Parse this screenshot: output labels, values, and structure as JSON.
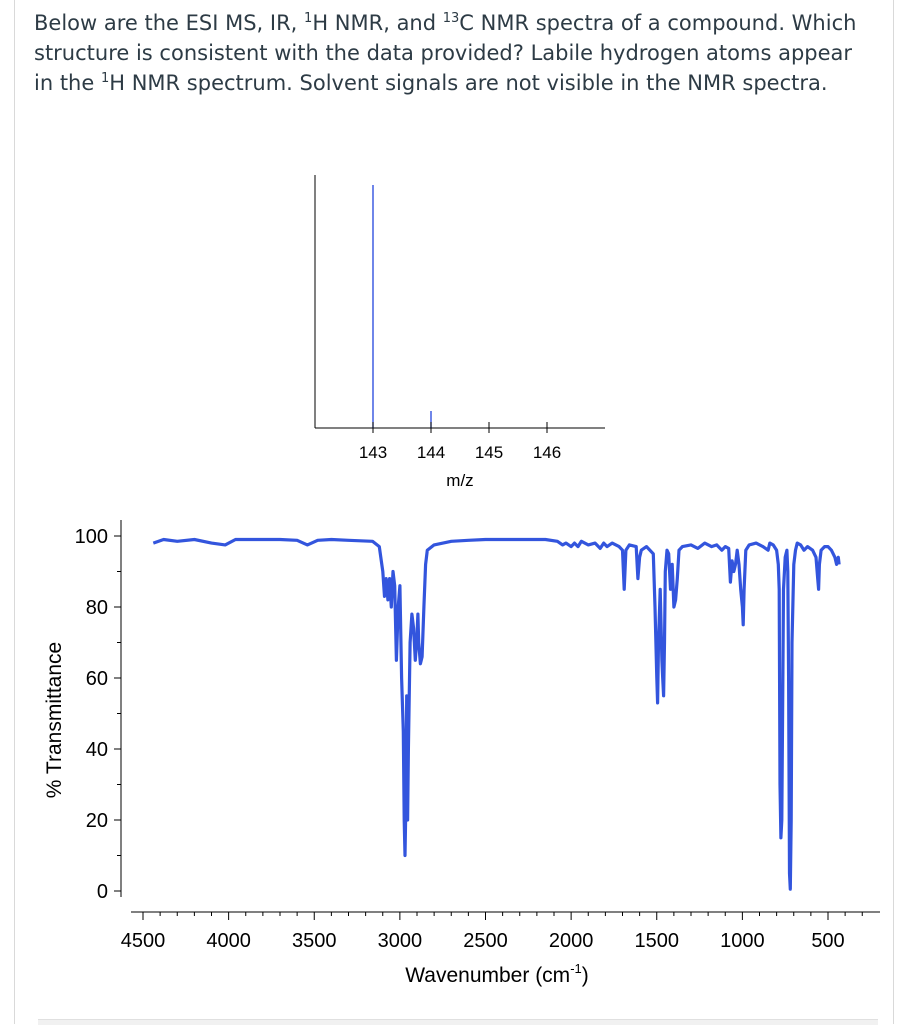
{
  "question": {
    "part1": "Below are the ESI MS, IR, ",
    "sup1": "1",
    "part2": "H NMR, and ",
    "sup2": "13",
    "part3": "C NMR spectra of a compound. Which structure is consistent with the data provided? Labile hydrogen atoms appear in the ",
    "sup3": "1",
    "part4": "H NMR spectrum. Solvent signals are not visible in the NMR spectra."
  },
  "chart_data": [
    {
      "type": "bar",
      "xlabel": "m/z",
      "ylabel": "",
      "xlim": [
        142.0,
        147.0
      ],
      "ylim": [
        0,
        100
      ],
      "ticks": [
        "143",
        "144",
        "145",
        "146"
      ],
      "peaks": [
        {
          "mz": 143,
          "intensity": 100
        },
        {
          "mz": 144,
          "intensity": 7
        }
      ],
      "color": "#2244dd"
    },
    {
      "type": "line",
      "xlabel": "Wavenumber (cm",
      "xlabel_sup": "-1",
      "xlabel_end": ")",
      "ylabel": "% Transmittance",
      "xlim": [
        4500,
        200
      ],
      "ylim": [
        0,
        100
      ],
      "xticks": [
        "4500",
        "4000",
        "3500",
        "3000",
        "2500",
        "2000",
        "1500",
        "1000",
        "500"
      ],
      "yticks": [
        "0",
        "20",
        "40",
        "60",
        "80",
        "100"
      ],
      "color": "#3355dd",
      "points": [
        [
          4440,
          98
        ],
        [
          4380,
          99
        ],
        [
          4300,
          98.5
        ],
        [
          4200,
          99
        ],
        [
          4100,
          98
        ],
        [
          4020,
          97.5
        ],
        [
          3960,
          99
        ],
        [
          3850,
          99
        ],
        [
          3700,
          99
        ],
        [
          3600,
          98.8
        ],
        [
          3540,
          97.5
        ],
        [
          3480,
          98.8
        ],
        [
          3400,
          99
        ],
        [
          3300,
          98.8
        ],
        [
          3160,
          98.5
        ],
        [
          3120,
          97
        ],
        [
          3100,
          90
        ],
        [
          3090,
          83
        ],
        [
          3080,
          88
        ],
        [
          3070,
          82
        ],
        [
          3060,
          88
        ],
        [
          3050,
          80
        ],
        [
          3040,
          90
        ],
        [
          3030,
          86
        ],
        [
          3020,
          65
        ],
        [
          3010,
          80
        ],
        [
          3000,
          86
        ],
        [
          2990,
          60
        ],
        [
          2980,
          45
        ],
        [
          2975,
          20
        ],
        [
          2970,
          10
        ],
        [
          2965,
          25
        ],
        [
          2960,
          55
        ],
        [
          2955,
          20
        ],
        [
          2950,
          40
        ],
        [
          2940,
          70
        ],
        [
          2930,
          78
        ],
        [
          2920,
          74
        ],
        [
          2910,
          65
        ],
        [
          2900,
          72
        ],
        [
          2895,
          78
        ],
        [
          2890,
          70
        ],
        [
          2880,
          64
        ],
        [
          2870,
          66
        ],
        [
          2860,
          80
        ],
        [
          2850,
          92
        ],
        [
          2840,
          96
        ],
        [
          2800,
          97.5
        ],
        [
          2700,
          98.5
        ],
        [
          2600,
          98.8
        ],
        [
          2500,
          99
        ],
        [
          2300,
          99
        ],
        [
          2150,
          99
        ],
        [
          2080,
          98.5
        ],
        [
          2050,
          97.5
        ],
        [
          2030,
          98
        ],
        [
          2000,
          97
        ],
        [
          1980,
          98
        ],
        [
          1960,
          97
        ],
        [
          1940,
          98.5
        ],
        [
          1900,
          97.5
        ],
        [
          1860,
          98
        ],
        [
          1830,
          96.5
        ],
        [
          1810,
          98
        ],
        [
          1790,
          97
        ],
        [
          1760,
          98
        ],
        [
          1720,
          97
        ],
        [
          1700,
          96
        ],
        [
          1690,
          85
        ],
        [
          1680,
          96
        ],
        [
          1660,
          97.5
        ],
        [
          1620,
          97
        ],
        [
          1610,
          88
        ],
        [
          1600,
          94
        ],
        [
          1590,
          96
        ],
        [
          1560,
          97
        ],
        [
          1520,
          95
        ],
        [
          1510,
          80
        ],
        [
          1500,
          60
        ],
        [
          1495,
          53
        ],
        [
          1490,
          70
        ],
        [
          1480,
          85
        ],
        [
          1470,
          65
        ],
        [
          1465,
          60
        ],
        [
          1460,
          55
        ],
        [
          1455,
          70
        ],
        [
          1450,
          90
        ],
        [
          1440,
          96
        ],
        [
          1430,
          95
        ],
        [
          1420,
          85
        ],
        [
          1410,
          92
        ],
        [
          1400,
          80
        ],
        [
          1390,
          82
        ],
        [
          1380,
          88
        ],
        [
          1370,
          96
        ],
        [
          1350,
          97
        ],
        [
          1300,
          97.5
        ],
        [
          1260,
          96.5
        ],
        [
          1220,
          98
        ],
        [
          1180,
          97
        ],
        [
          1150,
          97.5
        ],
        [
          1120,
          96
        ],
        [
          1100,
          97
        ],
        [
          1080,
          96.5
        ],
        [
          1070,
          87
        ],
        [
          1060,
          93
        ],
        [
          1050,
          90
        ],
        [
          1040,
          92
        ],
        [
          1030,
          96
        ],
        [
          1020,
          92
        ],
        [
          1010,
          85
        ],
        [
          1000,
          80
        ],
        [
          995,
          75
        ],
        [
          990,
          85
        ],
        [
          980,
          96
        ],
        [
          960,
          97.5
        ],
        [
          920,
          98
        ],
        [
          880,
          97
        ],
        [
          850,
          96
        ],
        [
          840,
          98
        ],
        [
          820,
          97.5
        ],
        [
          800,
          96
        ],
        [
          790,
          92
        ],
        [
          785,
          85
        ],
        [
          780,
          30
        ],
        [
          775,
          15
        ],
        [
          770,
          20
        ],
        [
          765,
          50
        ],
        [
          760,
          85
        ],
        [
          750,
          94
        ],
        [
          740,
          96
        ],
        [
          735,
          90
        ],
        [
          730,
          60
        ],
        [
          725,
          5
        ],
        [
          720,
          0.5
        ],
        [
          715,
          20
        ],
        [
          710,
          70
        ],
        [
          700,
          92
        ],
        [
          690,
          96
        ],
        [
          680,
          98
        ],
        [
          660,
          97.5
        ],
        [
          640,
          96
        ],
        [
          620,
          97
        ],
        [
          590,
          96
        ],
        [
          570,
          94
        ],
        [
          560,
          88
        ],
        [
          555,
          85
        ],
        [
          550,
          92
        ],
        [
          540,
          96
        ],
        [
          520,
          97
        ],
        [
          500,
          97
        ],
        [
          480,
          96
        ],
        [
          460,
          94
        ],
        [
          450,
          92
        ],
        [
          440,
          94
        ],
        [
          435,
          92
        ]
      ]
    }
  ]
}
